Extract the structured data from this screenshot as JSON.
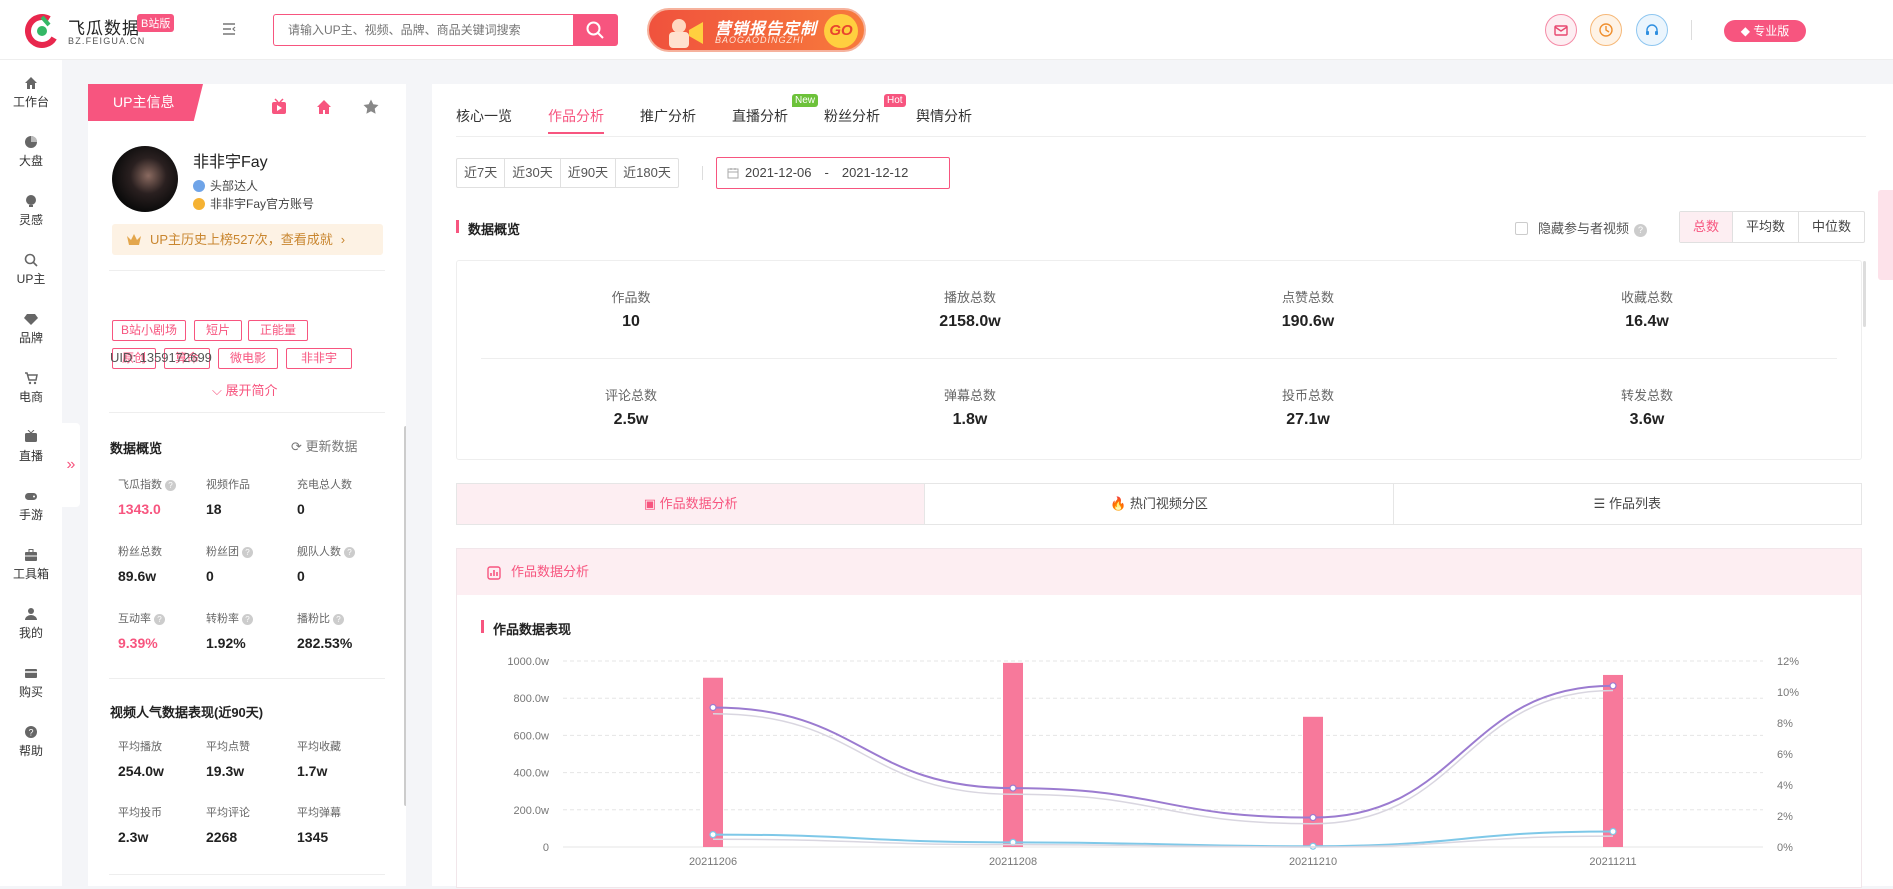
{
  "brand": {
    "title": "飞瓜数据",
    "badge": "B站版",
    "subtitle": "BZ.FEIGUA.CN"
  },
  "search": {
    "placeholder": "请输入UP主、视频、品牌、商品关键词搜索"
  },
  "ad": {
    "title": "营销报告定制",
    "subtitle": "BAOGAODINGZHI",
    "go": "GO"
  },
  "header": {
    "pro_label": "专业版",
    "accent": "#f7557f"
  },
  "nav": [
    {
      "label": "工作台",
      "icon": "home-icon"
    },
    {
      "label": "大盘",
      "icon": "pie-chart-icon"
    },
    {
      "label": "灵感",
      "icon": "bulb-icon"
    },
    {
      "label": "UP主",
      "icon": "search-icon"
    },
    {
      "label": "品牌",
      "icon": "gem-icon"
    },
    {
      "label": "电商",
      "icon": "cart-icon"
    },
    {
      "label": "直播",
      "icon": "tv-icon"
    },
    {
      "label": "手游",
      "icon": "gamepad-icon"
    },
    {
      "label": "工具箱",
      "icon": "toolbox-icon"
    },
    {
      "label": "我的",
      "icon": "user-icon"
    },
    {
      "label": "购买",
      "icon": "card-icon"
    },
    {
      "label": "帮助",
      "icon": "help-icon"
    }
  ],
  "up": {
    "panel_title": "UP主信息",
    "name": "非非宇Fay",
    "level": "头部达人",
    "verify": "非非宇Fay官方账号",
    "rank_text": "UP主历史上榜527次，查看成就",
    "tags": [
      "B站小剧场",
      "短片",
      "正能量",
      "原创",
      "算命",
      "微电影",
      "非非宇"
    ],
    "uid": "UID: 1359172699",
    "expand": "展开简介"
  },
  "overview": {
    "title": "数据概览",
    "refresh": "更新数据",
    "stats": [
      {
        "label": "飞瓜指数",
        "value": "1343.0",
        "q": true,
        "pink": true
      },
      {
        "label": "视频作品",
        "value": "18",
        "q": false,
        "pink": false
      },
      {
        "label": "充电总人数",
        "value": "0",
        "q": false,
        "pink": false
      },
      {
        "label": "粉丝总数",
        "value": "89.6w",
        "q": false,
        "pink": false
      },
      {
        "label": "粉丝团",
        "value": "0",
        "q": true,
        "pink": false
      },
      {
        "label": "舰队人数",
        "value": "0",
        "q": true,
        "pink": false
      },
      {
        "label": "互动率",
        "value": "9.39%",
        "q": true,
        "pink": true
      },
      {
        "label": "转粉率",
        "value": "1.92%",
        "q": true,
        "pink": false
      },
      {
        "label": "播粉比",
        "value": "282.53%",
        "q": true,
        "pink": false
      }
    ]
  },
  "popularity": {
    "title": "视频人气数据表现(近90天)",
    "stats": [
      {
        "label": "平均播放",
        "value": "254.0w"
      },
      {
        "label": "平均点赞",
        "value": "19.3w"
      },
      {
        "label": "平均收藏",
        "value": "1.7w"
      },
      {
        "label": "平均投币",
        "value": "2.3w"
      },
      {
        "label": "平均评论",
        "value": "2268"
      },
      {
        "label": "平均弹幕",
        "value": "1345"
      }
    ]
  },
  "tabs": [
    {
      "label": "核心一览",
      "badge": ""
    },
    {
      "label": "作品分析",
      "badge": ""
    },
    {
      "label": "推广分析",
      "badge": ""
    },
    {
      "label": "直播分析",
      "badge": "New"
    },
    {
      "label": "粉丝分析",
      "badge": "Hot"
    },
    {
      "label": "舆情分析",
      "badge": ""
    }
  ],
  "periods": [
    "近7天",
    "近30天",
    "近90天",
    "近180天"
  ],
  "date_range": {
    "start": "2021-12-06",
    "sep": "-",
    "end": "2021-12-12"
  },
  "data_overview": {
    "title": "数据概览",
    "hide_label": "隐藏参与者视频",
    "modes": [
      "总数",
      "平均数",
      "中位数"
    ],
    "metrics": [
      {
        "label": "作品数",
        "value": "10"
      },
      {
        "label": "播放总数",
        "value": "2158.0w"
      },
      {
        "label": "点赞总数",
        "value": "190.6w"
      },
      {
        "label": "收藏总数",
        "value": "16.4w"
      },
      {
        "label": "评论总数",
        "value": "2.5w"
      },
      {
        "label": "弹幕总数",
        "value": "1.8w"
      },
      {
        "label": "投币总数",
        "value": "27.1w"
      },
      {
        "label": "转发总数",
        "value": "3.6w"
      }
    ]
  },
  "sub_tabs": [
    "作品数据分析",
    "热门视频分区",
    "作品列表"
  ],
  "works_chart": {
    "head": "作品数据分析",
    "title": "作品数据表现"
  },
  "chart_data": {
    "type": "bar",
    "title": "作品数据表现",
    "categories": [
      "20211206",
      "20211208",
      "20211210",
      "20211211"
    ],
    "y_ticks": [
      "0",
      "200.0w",
      "400.0w",
      "600.0w",
      "800.0w",
      "1000.0w"
    ],
    "y2_ticks": [
      "0%",
      "2%",
      "4%",
      "6%",
      "8%",
      "10%",
      "12%"
    ],
    "ylim": [
      0,
      1000
    ],
    "y2lim": [
      0,
      12
    ],
    "series": [
      {
        "type": "bar",
        "axis": "left",
        "color": "#f7799b",
        "values": [
          910,
          990,
          700,
          925
        ]
      },
      {
        "type": "line",
        "axis": "right",
        "color": "#9b7bd0",
        "values": [
          9.0,
          3.8,
          1.9,
          10.4
        ]
      },
      {
        "type": "line",
        "axis": "right",
        "color": "#d9d6e0",
        "values": [
          8.6,
          3.4,
          1.5,
          10.1
        ]
      },
      {
        "type": "line",
        "axis": "right",
        "color": "#7ec8e8",
        "values": [
          0.8,
          0.3,
          0.05,
          1.0
        ]
      },
      {
        "type": "line",
        "axis": "right",
        "color": "#d9d6e0",
        "values": [
          0.5,
          0.15,
          0.0,
          0.7
        ]
      }
    ],
    "grid": true
  }
}
